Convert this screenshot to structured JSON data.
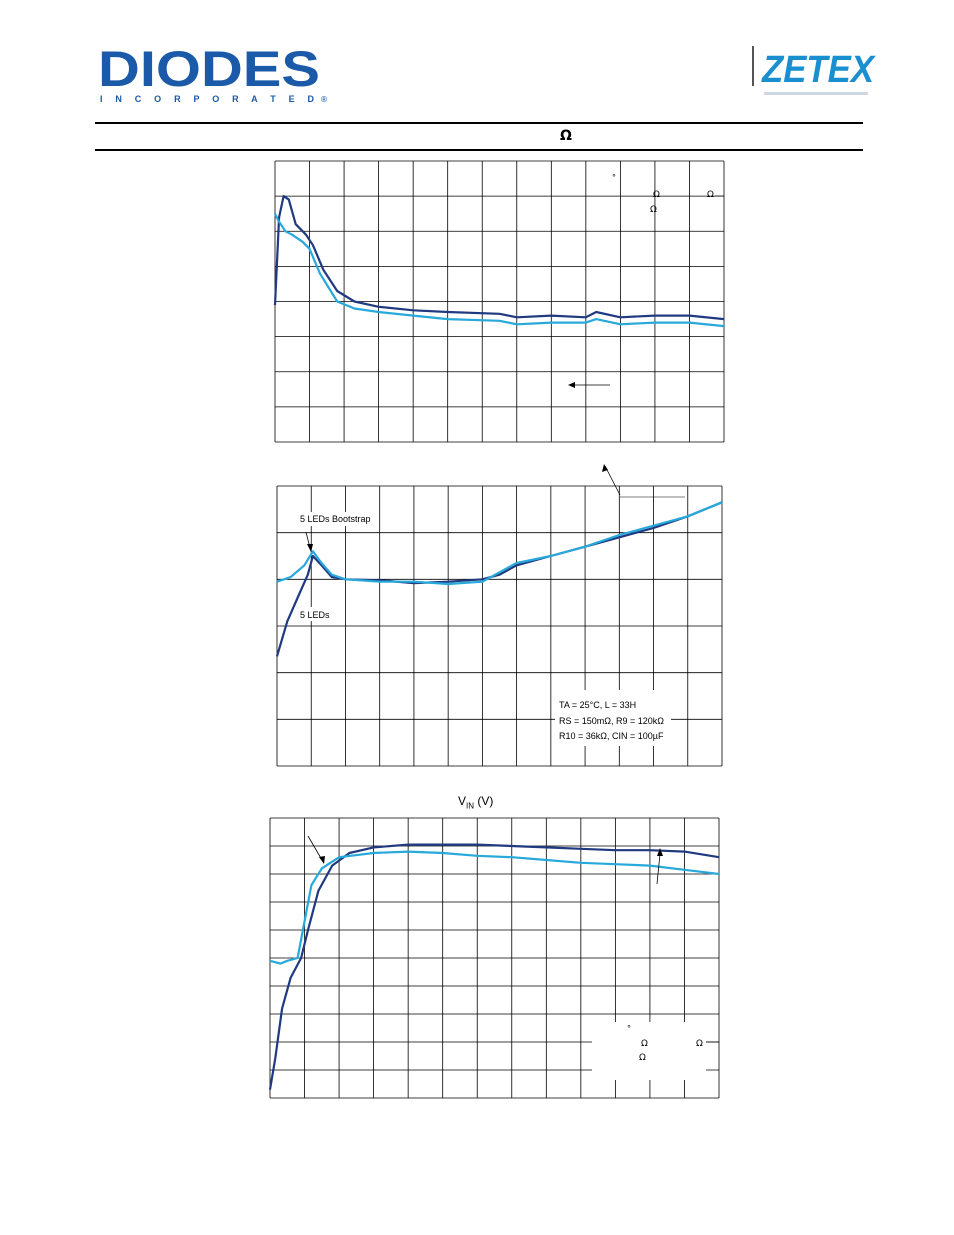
{
  "header": {
    "brand_left": "DIODES",
    "brand_left_sub": "I N C O R P O R A T E D",
    "brand_right": "ZETEX",
    "title_symbol": "Ω"
  },
  "colors": {
    "dark_series": "#1f3a80",
    "light_series": "#27a9db",
    "grid": "#000000",
    "logo_blue": "#1a5aa8"
  },
  "chart_data": [
    {
      "type": "line",
      "grid": true,
      "xlim": [
        0,
        13
      ],
      "ylim": [
        0,
        8
      ],
      "annotation_symbols": [
        "°",
        "Ω",
        "Ω",
        "Ω"
      ],
      "series": [
        {
          "color": "#1f3a80",
          "x": [
            0,
            0.12,
            0.25,
            0.4,
            0.6,
            0.9,
            1.1,
            1.4,
            1.8,
            2.3,
            3,
            4,
            5,
            6.5,
            7,
            8,
            9,
            9.3,
            10,
            11,
            12,
            13
          ],
          "y": [
            3.9,
            6.4,
            7.0,
            6.9,
            6.2,
            5.9,
            5.6,
            4.9,
            4.3,
            4.0,
            3.85,
            3.75,
            3.7,
            3.65,
            3.55,
            3.6,
            3.55,
            3.7,
            3.55,
            3.6,
            3.6,
            3.5
          ]
        },
        {
          "color": "#27a9db",
          "x": [
            0,
            0.1,
            0.3,
            0.5,
            0.8,
            1.0,
            1.3,
            1.8,
            2.3,
            3,
            4,
            5,
            6.5,
            7,
            8,
            9,
            9.3,
            10,
            11,
            12,
            13
          ],
          "y": [
            6.5,
            6.3,
            6.0,
            5.9,
            5.7,
            5.5,
            4.8,
            4.0,
            3.8,
            3.7,
            3.6,
            3.5,
            3.45,
            3.35,
            3.4,
            3.4,
            3.5,
            3.35,
            3.4,
            3.4,
            3.3
          ]
        }
      ]
    },
    {
      "type": "line",
      "grid": true,
      "xlim": [
        0,
        13
      ],
      "ylim": [
        0,
        6
      ],
      "annotations": [
        "5 LEDs Bootstrap",
        "5 LEDs"
      ],
      "conditions": {
        "line1": "TA = 25°C, L = 33H",
        "line2": "RS = 150mΩ, R9 = 120kΩ",
        "line3": "R10 = 36kΩ, CIN = 100µF"
      },
      "series": [
        {
          "color": "#1f3a80",
          "x": [
            0,
            0.3,
            0.6,
            0.9,
            1.05,
            1.3,
            1.6,
            2,
            3,
            4,
            5,
            6,
            6.5,
            7,
            8,
            9,
            10,
            11,
            12,
            13
          ],
          "y": [
            2.35,
            3.1,
            3.6,
            4.1,
            4.5,
            4.3,
            4.05,
            4.0,
            3.98,
            3.92,
            3.95,
            4.0,
            4.1,
            4.3,
            4.5,
            4.7,
            4.9,
            5.1,
            5.35,
            5.65
          ]
        },
        {
          "color": "#27a9db",
          "x": [
            0,
            0.4,
            0.8,
            1.05,
            1.3,
            1.6,
            2,
            3,
            4,
            5,
            6,
            6.5,
            7,
            8,
            9,
            10,
            11,
            12,
            13
          ],
          "y": [
            3.95,
            4.05,
            4.3,
            4.6,
            4.35,
            4.1,
            4.0,
            3.95,
            3.95,
            3.9,
            3.95,
            4.15,
            4.35,
            4.5,
            4.7,
            4.95,
            5.15,
            5.35,
            5.65
          ]
        }
      ]
    },
    {
      "type": "line",
      "grid": true,
      "title": "VIN (V)",
      "xlim": [
        0,
        13
      ],
      "ylim": [
        0,
        10
      ],
      "annotation_symbols": [
        "°",
        "Ω",
        "Ω",
        "Ω"
      ],
      "series": [
        {
          "color": "#1f3a80",
          "x": [
            0,
            0.15,
            0.35,
            0.6,
            0.9,
            1.1,
            1.4,
            1.8,
            2.3,
            3,
            4,
            5,
            6,
            7,
            8,
            9,
            10,
            11,
            12,
            13
          ],
          "y": [
            0.3,
            1.4,
            3.2,
            4.3,
            5.0,
            6.0,
            7.4,
            8.3,
            8.75,
            8.95,
            9.05,
            9.05,
            9.05,
            9.0,
            8.95,
            8.9,
            8.85,
            8.85,
            8.8,
            8.6
          ]
        },
        {
          "color": "#27a9db",
          "x": [
            0,
            0.3,
            0.5,
            0.8,
            1.0,
            1.2,
            1.5,
            2,
            3,
            4,
            5,
            6,
            7,
            8,
            9,
            10,
            11,
            12,
            13
          ],
          "y": [
            4.9,
            4.8,
            4.9,
            5.0,
            6.3,
            7.6,
            8.2,
            8.6,
            8.75,
            8.8,
            8.75,
            8.65,
            8.6,
            8.5,
            8.4,
            8.35,
            8.3,
            8.15,
            8.0
          ]
        }
      ]
    }
  ]
}
